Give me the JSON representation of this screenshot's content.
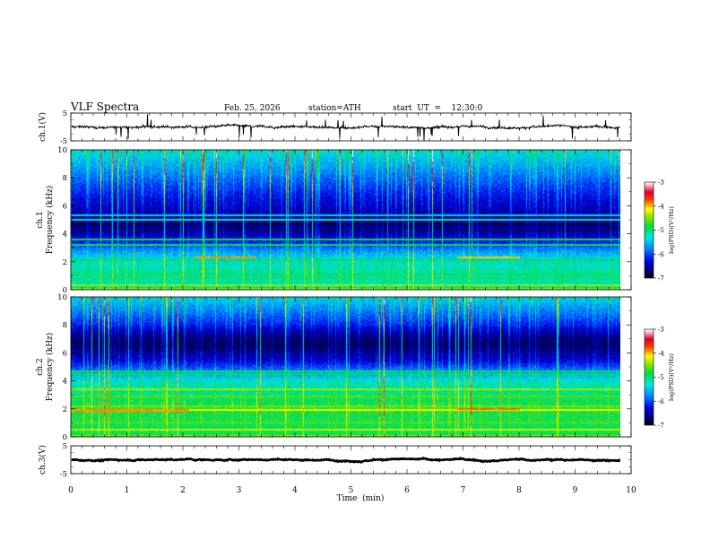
{
  "header": {
    "title": "VLF  Spectra",
    "date": "Feb. 25, 2026",
    "station": "station=ATH",
    "start_ut": "start  UT  =    12:30:0"
  },
  "chart_data": [
    {
      "type": "line",
      "id": "ch1-waveform",
      "ylabel": "ch.1(V)",
      "ylim": [
        -5,
        5
      ],
      "yticks": [
        {
          "v": 5,
          "label": "5"
        },
        {
          "v": -5,
          "label": "-5"
        }
      ],
      "xlim": [
        0,
        10
      ],
      "x_end_min": 9.8,
      "trace_level": 0,
      "trace_amplitude": 1.2,
      "color": "#000000"
    },
    {
      "type": "heatmap",
      "id": "ch1-spectrogram",
      "ylabel_line1": "ch.1",
      "ylabel_line2": "Frequency  (kHz)",
      "ylim": [
        0,
        10
      ],
      "yticks": [
        {
          "v": 0,
          "label": "0"
        },
        {
          "v": 2,
          "label": "2"
        },
        {
          "v": 4,
          "label": "4"
        },
        {
          "v": 6,
          "label": "6"
        },
        {
          "v": 8,
          "label": "8"
        },
        {
          "v": 10,
          "label": "10"
        }
      ],
      "xlim": [
        0,
        10
      ],
      "x_end_min": 9.8,
      "colorbar": {
        "label": "log(PSD)(V²/Hz)",
        "range": [
          -7,
          -3
        ],
        "ticks": [
          {
            "v": -3,
            "label": "-3"
          },
          {
            "v": -4,
            "label": "-4"
          },
          {
            "v": -5,
            "label": "-5"
          },
          {
            "v": -6,
            "label": "-6"
          },
          {
            "v": -7,
            "label": "-7"
          }
        ]
      },
      "background_profile": [
        {
          "f": 0,
          "psd": -5.0
        },
        {
          "f": 0.6,
          "psd": -5.2
        },
        {
          "f": 1.2,
          "psd": -5.1
        },
        {
          "f": 2.0,
          "psd": -5.3
        },
        {
          "f": 2.6,
          "psd": -5.6
        },
        {
          "f": 3.0,
          "psd": -5.9
        },
        {
          "f": 3.5,
          "psd": -6.3
        },
        {
          "f": 4.5,
          "psd": -6.6
        },
        {
          "f": 5.5,
          "psd": -6.5
        },
        {
          "f": 6.5,
          "psd": -6.3
        },
        {
          "f": 8.0,
          "psd": -5.9
        },
        {
          "f": 9.0,
          "psd": -5.6
        },
        {
          "f": 10.0,
          "psd": -5.3
        }
      ],
      "tone_lines": [
        {
          "f": 0.3,
          "psd": -4.4
        },
        {
          "f": 0.8,
          "psd": -4.8
        },
        {
          "f": 1.1,
          "psd": -5.0
        },
        {
          "f": 2.1,
          "psd": -4.9
        },
        {
          "f": 3.2,
          "psd": -4.9
        },
        {
          "f": 3.6,
          "psd": -4.8
        },
        {
          "f": 5.0,
          "psd": -5.2
        },
        {
          "f": 5.3,
          "psd": -5.4
        }
      ],
      "enhanced_segments": [
        {
          "t0": 2.2,
          "t1": 3.3,
          "f": 2.3,
          "psd": -3.9
        },
        {
          "t0": 6.9,
          "t1": 8.0,
          "f": 2.3,
          "psd": -4.0
        }
      ],
      "dark_band": {
        "f0": 3.7,
        "f1": 5.6,
        "psd": -6.9
      }
    },
    {
      "type": "heatmap",
      "id": "ch2-spectrogram",
      "ylabel_line1": "ch.2",
      "ylabel_line2": "Frequency  (kHz)",
      "ylim": [
        0,
        10
      ],
      "yticks": [
        {
          "v": 0,
          "label": "0"
        },
        {
          "v": 2,
          "label": "2"
        },
        {
          "v": 4,
          "label": "4"
        },
        {
          "v": 6,
          "label": "6"
        },
        {
          "v": 8,
          "label": "8"
        },
        {
          "v": 10,
          "label": "10"
        }
      ],
      "xlim": [
        0,
        10
      ],
      "x_end_min": 9.8,
      "colorbar": {
        "label": "log(PSD)(V²/Hz)",
        "range": [
          -7,
          -3
        ],
        "ticks": [
          {
            "v": -3,
            "label": "-3"
          },
          {
            "v": -4,
            "label": "-4"
          },
          {
            "v": -5,
            "label": "-5"
          },
          {
            "v": -6,
            "label": "-6"
          },
          {
            "v": -7,
            "label": "-7"
          }
        ]
      },
      "background_profile": [
        {
          "f": 0,
          "psd": -4.9
        },
        {
          "f": 1.0,
          "psd": -4.9
        },
        {
          "f": 2.0,
          "psd": -4.8
        },
        {
          "f": 3.0,
          "psd": -5.0
        },
        {
          "f": 4.0,
          "psd": -5.3
        },
        {
          "f": 4.8,
          "psd": -5.9
        },
        {
          "f": 5.5,
          "psd": -6.4
        },
        {
          "f": 6.5,
          "psd": -6.7
        },
        {
          "f": 7.5,
          "psd": -6.4
        },
        {
          "f": 8.5,
          "psd": -6.0
        },
        {
          "f": 9.3,
          "psd": -5.7
        },
        {
          "f": 10.0,
          "psd": -5.4
        }
      ],
      "tone_lines": [
        {
          "f": 0.5,
          "psd": -4.3
        },
        {
          "f": 1.0,
          "psd": -4.6
        },
        {
          "f": 1.9,
          "psd": -4.2
        },
        {
          "f": 2.2,
          "psd": -4.5
        },
        {
          "f": 2.9,
          "psd": -4.6
        },
        {
          "f": 3.4,
          "psd": -4.4
        },
        {
          "f": 4.5,
          "psd": -4.9
        },
        {
          "f": 4.7,
          "psd": -5.0
        }
      ],
      "enhanced_segments": [
        {
          "t0": 0.0,
          "t1": 2.1,
          "f": 1.9,
          "psd": -3.9
        },
        {
          "t0": 6.9,
          "t1": 8.0,
          "f": 2.0,
          "psd": -3.8
        }
      ],
      "dark_band": {
        "f0": 6.0,
        "f1": 8.0,
        "psd": -6.9
      }
    },
    {
      "type": "line",
      "id": "ch3-waveform",
      "ylabel": "ch.3(V)",
      "ylim": [
        -5,
        5
      ],
      "yticks": [
        {
          "v": 5,
          "label": "5"
        },
        {
          "v": -5,
          "label": "-5"
        }
      ],
      "xlim": [
        0,
        10
      ],
      "x_end_min": 9.8,
      "trace_level": 0,
      "trace_amplitude": 0.35,
      "color": "#000000"
    }
  ],
  "x_axis": {
    "label": "Time  (min)",
    "ticks": [
      {
        "v": 0,
        "label": "0"
      },
      {
        "v": 1,
        "label": "1"
      },
      {
        "v": 2,
        "label": "2"
      },
      {
        "v": 3,
        "label": "3"
      },
      {
        "v": 4,
        "label": "4"
      },
      {
        "v": 5,
        "label": "5"
      },
      {
        "v": 6,
        "label": "6"
      },
      {
        "v": 7,
        "label": "7"
      },
      {
        "v": 8,
        "label": "8"
      },
      {
        "v": 9,
        "label": "9"
      },
      {
        "v": 10,
        "label": "10"
      }
    ]
  }
}
